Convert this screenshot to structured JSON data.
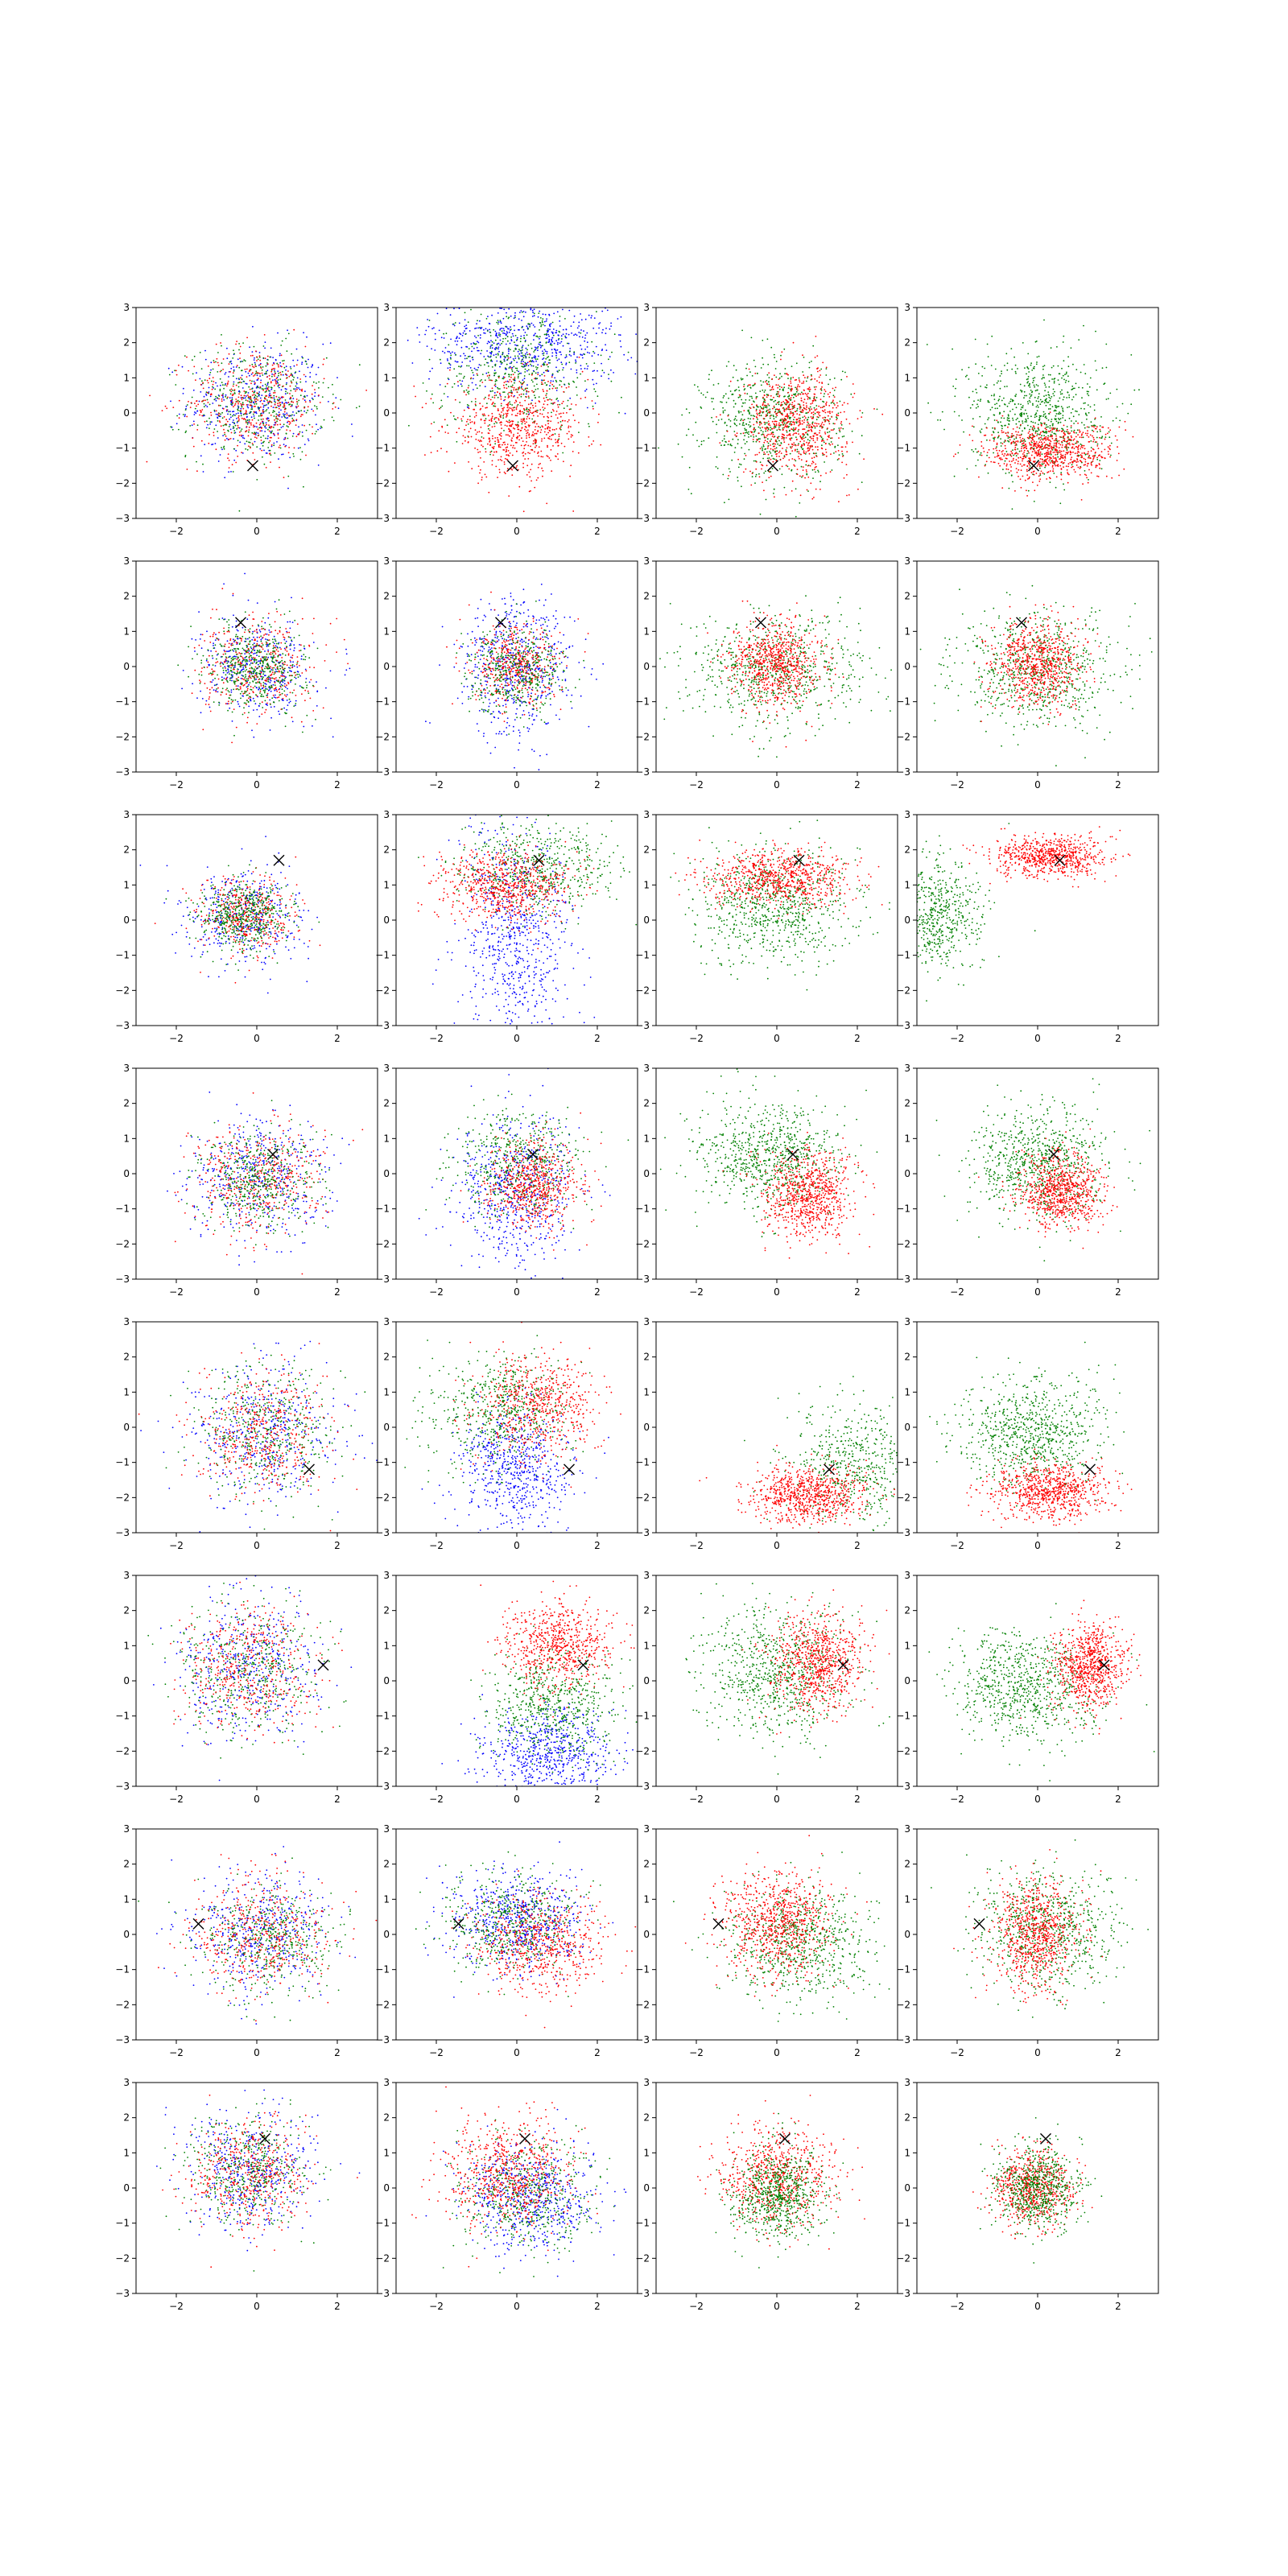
{
  "figure": {
    "rows": 8,
    "cols": 4,
    "xlim": [
      -3,
      3
    ],
    "ylim": [
      -3,
      3
    ],
    "xticks": [
      -2,
      0,
      2
    ],
    "yticks": [
      -3,
      -2,
      -1,
      0,
      1,
      2,
      3
    ],
    "xtick_labels": [
      "−2",
      "0",
      "2"
    ],
    "ytick_labels": [
      "−3",
      "−2",
      "−1",
      "0",
      "1",
      "2",
      "3"
    ],
    "colors": {
      "red": "#ff0000",
      "green": "#008000",
      "blue": "#0000ff",
      "marker": "#000000"
    },
    "marker_symbol": "x"
  },
  "chart_data": {
    "type": "scatter",
    "grid": false,
    "legend": "none",
    "rows": [
      {
        "marker": [
          -0.1,
          -1.5
        ],
        "panels": [
          {
            "series": [
              {
                "color": "blue",
                "cx": 0,
                "cy": 0.3,
                "sx": 0.85,
                "sy": 0.85,
                "n": 450
              },
              {
                "color": "green",
                "cx": 0,
                "cy": 0.3,
                "sx": 0.85,
                "sy": 0.8,
                "n": 450
              },
              {
                "color": "red",
                "cx": 0,
                "cy": 0.3,
                "sx": 0.85,
                "sy": 0.8,
                "n": 450
              }
            ]
          },
          {
            "series": [
              {
                "color": "blue",
                "cx": 0.2,
                "cy": 2.0,
                "sx": 1.2,
                "sy": 0.7,
                "n": 650
              },
              {
                "color": "green",
                "cx": 0.0,
                "cy": 1.2,
                "sx": 1.0,
                "sy": 0.9,
                "n": 500
              },
              {
                "color": "red",
                "cx": 0,
                "cy": -0.4,
                "sx": 0.85,
                "sy": 0.7,
                "n": 700
              }
            ]
          },
          {
            "series": [
              {
                "color": "green",
                "cx": -0.1,
                "cy": -0.2,
                "sx": 0.85,
                "sy": 0.85,
                "n": 700
              },
              {
                "color": "red",
                "cx": 0.5,
                "cy": -0.3,
                "sx": 0.65,
                "sy": 0.75,
                "n": 750
              }
            ]
          },
          {
            "series": [
              {
                "color": "green",
                "cx": 0,
                "cy": 0,
                "sx": 0.85,
                "sy": 0.9,
                "n": 750
              },
              {
                "color": "red",
                "cx": 0.3,
                "cy": -1.1,
                "sx": 0.8,
                "sy": 0.4,
                "n": 750
              }
            ]
          }
        ]
      },
      {
        "marker": [
          -0.4,
          1.25
        ],
        "panels": [
          {
            "series": [
              {
                "color": "blue",
                "cx": 0,
                "cy": 0,
                "sx": 0.7,
                "sy": 0.7,
                "n": 400
              },
              {
                "color": "red",
                "cx": 0,
                "cy": 0,
                "sx": 0.7,
                "sy": 0.7,
                "n": 400
              },
              {
                "color": "green",
                "cx": 0,
                "cy": 0,
                "sx": 0.6,
                "sy": 0.6,
                "n": 500
              }
            ]
          },
          {
            "series": [
              {
                "color": "blue",
                "cx": 0,
                "cy": 0,
                "sx": 0.7,
                "sy": 1.0,
                "n": 550
              },
              {
                "color": "red",
                "cx": 0,
                "cy": 0,
                "sx": 0.55,
                "sy": 0.55,
                "n": 450
              },
              {
                "color": "green",
                "cx": 0,
                "cy": -0.1,
                "sx": 0.6,
                "sy": 0.6,
                "n": 450
              }
            ]
          },
          {
            "series": [
              {
                "color": "green",
                "cx": 0,
                "cy": -0.1,
                "sx": 1.1,
                "sy": 0.8,
                "n": 700
              },
              {
                "color": "red",
                "cx": 0,
                "cy": 0.1,
                "sx": 0.55,
                "sy": 0.6,
                "n": 700
              }
            ]
          },
          {
            "series": [
              {
                "color": "green",
                "cx": 0,
                "cy": -0.1,
                "sx": 1.0,
                "sy": 0.8,
                "n": 700
              },
              {
                "color": "red",
                "cx": 0,
                "cy": 0.1,
                "sx": 0.55,
                "sy": 0.6,
                "n": 700
              }
            ]
          }
        ]
      },
      {
        "marker": [
          0.55,
          1.7
        ],
        "panels": [
          {
            "series": [
              {
                "color": "blue",
                "cx": -0.3,
                "cy": 0.1,
                "sx": 0.75,
                "sy": 0.7,
                "n": 400
              },
              {
                "color": "red",
                "cx": -0.3,
                "cy": 0.1,
                "sx": 0.6,
                "sy": 0.55,
                "n": 400
              },
              {
                "color": "green",
                "cx": -0.3,
                "cy": 0.1,
                "sx": 0.55,
                "sy": 0.5,
                "n": 500
              }
            ]
          },
          {
            "series": [
              {
                "color": "blue",
                "cx": 0,
                "cy": -0.5,
                "sx": 0.7,
                "sy": 1.6,
                "n": 700
              },
              {
                "color": "green",
                "cx": 0.5,
                "cy": 1.5,
                "sx": 1.0,
                "sy": 0.6,
                "n": 550
              },
              {
                "color": "red",
                "cx": -0.3,
                "cy": 1.0,
                "sx": 0.8,
                "sy": 0.5,
                "n": 650
              }
            ]
          },
          {
            "series": [
              {
                "color": "green",
                "cx": 0,
                "cy": 0.4,
                "sx": 1.0,
                "sy": 0.8,
                "n": 750
              },
              {
                "color": "red",
                "cx": 0,
                "cy": 1.2,
                "sx": 0.9,
                "sy": 0.4,
                "n": 750
              }
            ]
          },
          {
            "series": [
              {
                "color": "green",
                "cx": -2.6,
                "cy": 0.2,
                "sx": 0.6,
                "sy": 0.8,
                "n": 600
              },
              {
                "color": "red",
                "cx": 0.3,
                "cy": 1.8,
                "sx": 0.7,
                "sy": 0.3,
                "n": 700
              }
            ]
          }
        ]
      },
      {
        "marker": [
          0.4,
          0.55
        ],
        "panels": [
          {
            "series": [
              {
                "color": "blue",
                "cx": 0,
                "cy": -0.2,
                "sx": 0.85,
                "sy": 0.85,
                "n": 450
              },
              {
                "color": "red",
                "cx": 0,
                "cy": -0.2,
                "sx": 0.8,
                "sy": 0.8,
                "n": 450
              },
              {
                "color": "green",
                "cx": 0,
                "cy": -0.2,
                "sx": 0.7,
                "sy": 0.7,
                "n": 450
              }
            ]
          },
          {
            "series": [
              {
                "color": "blue",
                "cx": 0,
                "cy": -0.5,
                "sx": 0.75,
                "sy": 1.1,
                "n": 600
              },
              {
                "color": "green",
                "cx": 0,
                "cy": 0.3,
                "sx": 0.75,
                "sy": 0.75,
                "n": 500
              },
              {
                "color": "red",
                "cx": 0.4,
                "cy": -0.3,
                "sx": 0.6,
                "sy": 0.6,
                "n": 600
              }
            ]
          },
          {
            "series": [
              {
                "color": "green",
                "cx": -0.2,
                "cy": 0.5,
                "sx": 0.85,
                "sy": 0.75,
                "n": 750
              },
              {
                "color": "red",
                "cx": 0.8,
                "cy": -0.6,
                "sx": 0.55,
                "sy": 0.6,
                "n": 750
              }
            ]
          },
          {
            "series": [
              {
                "color": "green",
                "cx": 0,
                "cy": 0.3,
                "sx": 0.85,
                "sy": 0.8,
                "n": 750
              },
              {
                "color": "red",
                "cx": 0.6,
                "cy": -0.5,
                "sx": 0.5,
                "sy": 0.55,
                "n": 750
              }
            ]
          }
        ]
      },
      {
        "marker": [
          1.3,
          -1.2
        ],
        "panels": [
          {
            "series": [
              {
                "color": "blue",
                "cx": 0.2,
                "cy": -0.2,
                "sx": 0.9,
                "sy": 0.95,
                "n": 450
              },
              {
                "color": "green",
                "cx": 0.2,
                "cy": -0.2,
                "sx": 0.85,
                "sy": 0.9,
                "n": 450
              },
              {
                "color": "red",
                "cx": 0.2,
                "cy": -0.2,
                "sx": 0.8,
                "sy": 0.85,
                "n": 450
              }
            ]
          },
          {
            "series": [
              {
                "color": "blue",
                "cx": 0,
                "cy": -1.2,
                "sx": 0.7,
                "sy": 0.9,
                "n": 600
              },
              {
                "color": "green",
                "cx": -0.4,
                "cy": 0.5,
                "sx": 0.9,
                "sy": 0.8,
                "n": 550
              },
              {
                "color": "red",
                "cx": 0.5,
                "cy": 0.6,
                "sx": 0.75,
                "sy": 0.75,
                "n": 600
              }
            ]
          },
          {
            "series": [
              {
                "color": "green",
                "cx": 2.0,
                "cy": -1.0,
                "sx": 0.8,
                "sy": 0.9,
                "n": 550
              },
              {
                "color": "red",
                "cx": 0.8,
                "cy": -1.9,
                "sx": 0.75,
                "sy": 0.4,
                "n": 750
              }
            ]
          },
          {
            "series": [
              {
                "color": "green",
                "cx": -0.2,
                "cy": -0.2,
                "sx": 0.9,
                "sy": 0.75,
                "n": 750
              },
              {
                "color": "red",
                "cx": 0.3,
                "cy": -1.8,
                "sx": 0.7,
                "sy": 0.4,
                "n": 750
              }
            ]
          }
        ]
      },
      {
        "marker": [
          1.65,
          0.45
        ],
        "panels": [
          {
            "series": [
              {
                "color": "blue",
                "cx": -0.2,
                "cy": 0.4,
                "sx": 0.9,
                "sy": 0.95,
                "n": 450
              },
              {
                "color": "green",
                "cx": -0.2,
                "cy": 0.4,
                "sx": 0.85,
                "sy": 0.9,
                "n": 450
              },
              {
                "color": "red",
                "cx": -0.2,
                "cy": 0.4,
                "sx": 0.85,
                "sy": 0.9,
                "n": 450
              }
            ]
          },
          {
            "series": [
              {
                "color": "blue",
                "cx": 0.8,
                "cy": -2.0,
                "sx": 0.8,
                "sy": 0.6,
                "n": 600
              },
              {
                "color": "green",
                "cx": 0.9,
                "cy": -0.7,
                "sx": 0.8,
                "sy": 0.75,
                "n": 600
              },
              {
                "color": "red",
                "cx": 1.0,
                "cy": 1.0,
                "sx": 0.7,
                "sy": 0.6,
                "n": 650
              }
            ]
          },
          {
            "series": [
              {
                "color": "green",
                "cx": 0,
                "cy": 0.2,
                "sx": 0.9,
                "sy": 0.85,
                "n": 750
              },
              {
                "color": "red",
                "cx": 1.0,
                "cy": 0.5,
                "sx": 0.55,
                "sy": 0.7,
                "n": 750
              }
            ]
          },
          {
            "series": [
              {
                "color": "green",
                "cx": -0.3,
                "cy": -0.2,
                "sx": 0.9,
                "sy": 0.8,
                "n": 750
              },
              {
                "color": "red",
                "cx": 1.3,
                "cy": 0.4,
                "sx": 0.45,
                "sy": 0.6,
                "n": 750
              }
            ]
          }
        ]
      },
      {
        "marker": [
          -1.45,
          0.3
        ],
        "panels": [
          {
            "series": [
              {
                "color": "blue",
                "cx": 0.1,
                "cy": 0,
                "sx": 0.9,
                "sy": 0.85,
                "n": 450
              },
              {
                "color": "green",
                "cx": 0.3,
                "cy": -0.2,
                "sx": 0.85,
                "sy": 0.8,
                "n": 450
              },
              {
                "color": "red",
                "cx": 0.1,
                "cy": 0,
                "sx": 0.85,
                "sy": 0.8,
                "n": 450
              }
            ]
          },
          {
            "series": [
              {
                "color": "blue",
                "cx": 0,
                "cy": 0.4,
                "sx": 0.8,
                "sy": 0.7,
                "n": 600
              },
              {
                "color": "green",
                "cx": -0.2,
                "cy": 0.3,
                "sx": 0.8,
                "sy": 0.7,
                "n": 500
              },
              {
                "color": "red",
                "cx": 0.6,
                "cy": -0.3,
                "sx": 0.8,
                "sy": 0.7,
                "n": 600
              }
            ]
          },
          {
            "series": [
              {
                "color": "green",
                "cx": 0.6,
                "cy": -0.3,
                "sx": 0.85,
                "sy": 0.8,
                "n": 700
              },
              {
                "color": "red",
                "cx": 0,
                "cy": 0.3,
                "sx": 0.7,
                "sy": 0.75,
                "n": 750
              }
            ]
          },
          {
            "series": [
              {
                "color": "green",
                "cx": 0.2,
                "cy": 0.1,
                "sx": 0.85,
                "sy": 0.85,
                "n": 700
              },
              {
                "color": "red",
                "cx": 0,
                "cy": 0,
                "sx": 0.55,
                "sy": 0.75,
                "n": 750
              }
            ]
          }
        ]
      },
      {
        "marker": [
          0.2,
          1.4
        ],
        "panels": [
          {
            "series": [
              {
                "color": "blue",
                "cx": -0.2,
                "cy": 0.5,
                "sx": 0.8,
                "sy": 0.85,
                "n": 450
              },
              {
                "color": "green",
                "cx": -0.3,
                "cy": 0.5,
                "sx": 0.75,
                "sy": 0.75,
                "n": 450
              },
              {
                "color": "red",
                "cx": -0.2,
                "cy": 0.4,
                "sx": 0.75,
                "sy": 0.8,
                "n": 450
              }
            ]
          },
          {
            "series": [
              {
                "color": "blue",
                "cx": 0.3,
                "cy": -0.3,
                "sx": 0.8,
                "sy": 0.75,
                "n": 600
              },
              {
                "color": "green",
                "cx": 0.2,
                "cy": -0.2,
                "sx": 0.85,
                "sy": 0.75,
                "n": 500
              },
              {
                "color": "red",
                "cx": -0.2,
                "cy": 0.4,
                "sx": 0.8,
                "sy": 0.75,
                "n": 650
              }
            ]
          },
          {
            "series": [
              {
                "color": "red",
                "cx": 0,
                "cy": 0.3,
                "sx": 0.7,
                "sy": 0.7,
                "n": 700
              },
              {
                "color": "green",
                "cx": 0,
                "cy": -0.2,
                "sx": 0.55,
                "sy": 0.65,
                "n": 700
              }
            ]
          },
          {
            "series": [
              {
                "color": "red",
                "cx": -0.1,
                "cy": 0,
                "sx": 0.5,
                "sy": 0.55,
                "n": 650
              },
              {
                "color": "green",
                "cx": 0,
                "cy": 0,
                "sx": 0.5,
                "sy": 0.6,
                "n": 650
              }
            ]
          }
        ]
      }
    ]
  }
}
